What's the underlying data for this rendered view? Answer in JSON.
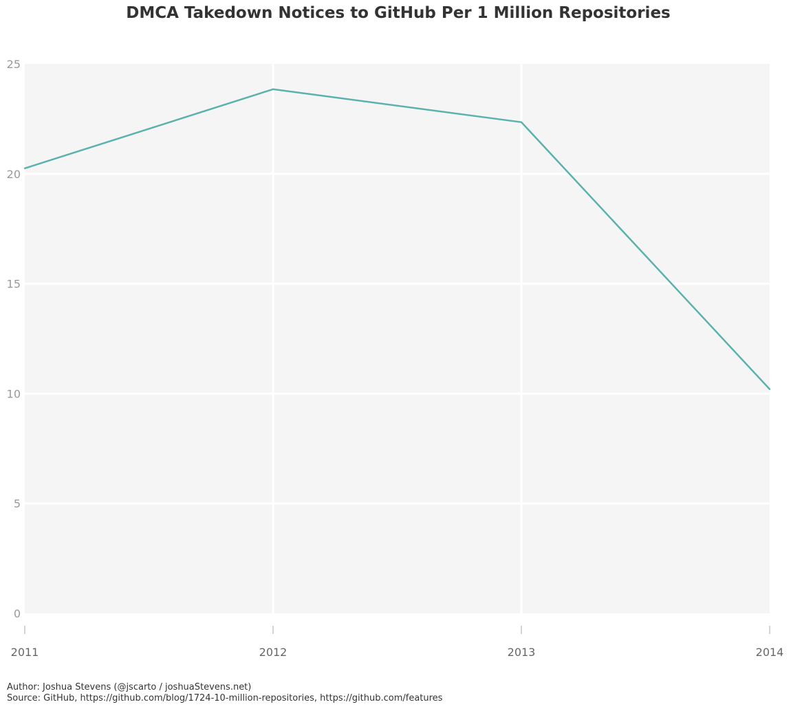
{
  "chart_data": {
    "type": "line",
    "title": "DMCA Takedown Notices to GitHub Per 1 Million Repositories",
    "xlabel": "",
    "ylabel": "",
    "x": [
      2011,
      2012,
      2013,
      2014
    ],
    "x_tick_labels": [
      "2011",
      "2012",
      "2013",
      "2014"
    ],
    "y_ticks": [
      0,
      5,
      10,
      15,
      20,
      25
    ],
    "y_tick_labels": [
      "0",
      "5",
      "10",
      "15",
      "20",
      "25"
    ],
    "xlim": [
      2011,
      2014
    ],
    "ylim": [
      0,
      25
    ],
    "grid": true,
    "legend": "none",
    "series": [
      {
        "values": [
          20.25,
          23.85,
          22.35,
          10.2
        ],
        "color": "#5bb2ac"
      }
    ],
    "background_color": "#f5f5f5",
    "grid_color": "#ffffff"
  },
  "footer": {
    "author": "Author: Joshua Stevens (@jscarto / joshuaStevens.net)",
    "source": "Source: GitHub, https://github.com/blog/1724-10-million-repositories, https://github.com/features"
  }
}
